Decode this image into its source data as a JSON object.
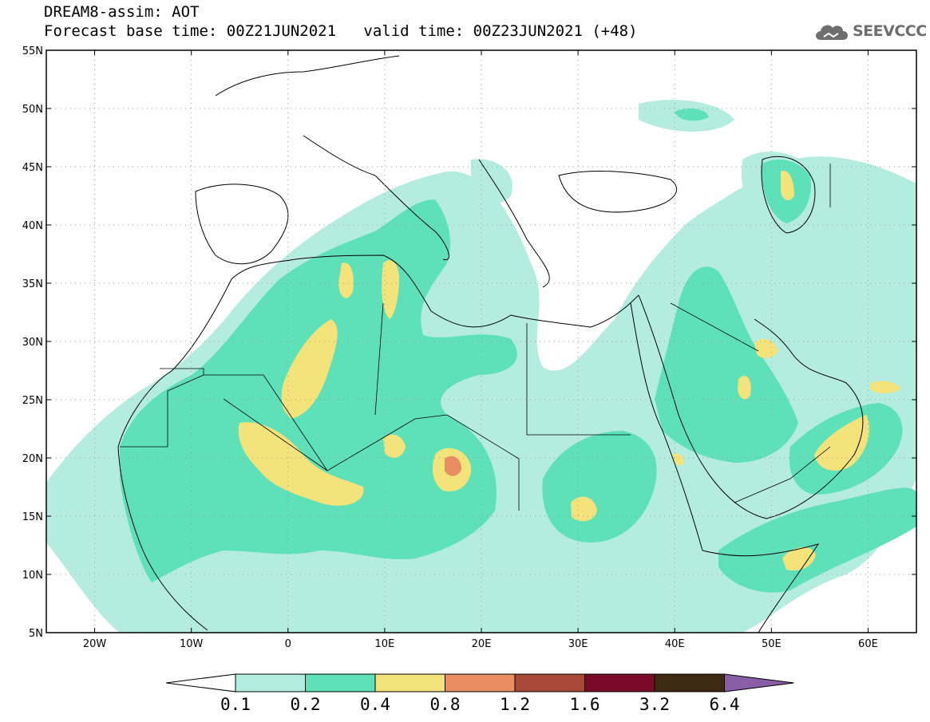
{
  "title": {
    "line1": "DREAM8-assim: AOT",
    "base_time_label": "Forecast base time: 00Z21JUN2021",
    "valid_time_label": "valid time: 00Z23JUN2021 (+48)"
  },
  "logo": {
    "text": "SEEVCCC",
    "icon": "cloud-icon"
  },
  "map": {
    "lon_range": [
      -25,
      65
    ],
    "lat_range": [
      5,
      55
    ],
    "lat_ticks": [
      {
        "value": 55,
        "label": "55N"
      },
      {
        "value": 50,
        "label": "50N"
      },
      {
        "value": 45,
        "label": "45N"
      },
      {
        "value": 40,
        "label": "40N"
      },
      {
        "value": 35,
        "label": "35N"
      },
      {
        "value": 30,
        "label": "30N"
      },
      {
        "value": 25,
        "label": "25N"
      },
      {
        "value": 20,
        "label": "20N"
      },
      {
        "value": 15,
        "label": "15N"
      },
      {
        "value": 10,
        "label": "10N"
      },
      {
        "value": 5,
        "label": "5N"
      }
    ],
    "lon_ticks": [
      {
        "value": -20,
        "label": "20W"
      },
      {
        "value": -10,
        "label": "10W"
      },
      {
        "value": 0,
        "label": "0"
      },
      {
        "value": 10,
        "label": "10E"
      },
      {
        "value": 20,
        "label": "20E"
      },
      {
        "value": 30,
        "label": "30E"
      },
      {
        "value": 40,
        "label": "40E"
      },
      {
        "value": 50,
        "label": "50E"
      },
      {
        "value": 60,
        "label": "60E"
      }
    ],
    "gridlines": "dotted"
  },
  "colorbar": {
    "thresholds": [
      "0.1",
      "0.2",
      "0.4",
      "0.8",
      "1.2",
      "1.6",
      "3.2",
      "6.4"
    ],
    "colors": [
      "#ffffff",
      "#b4ede0",
      "#5ee0b8",
      "#f4e27a",
      "#e98d62",
      "#a84836",
      "#7a0a2a",
      "#3e2a14",
      "#8a5ea6"
    ]
  }
}
